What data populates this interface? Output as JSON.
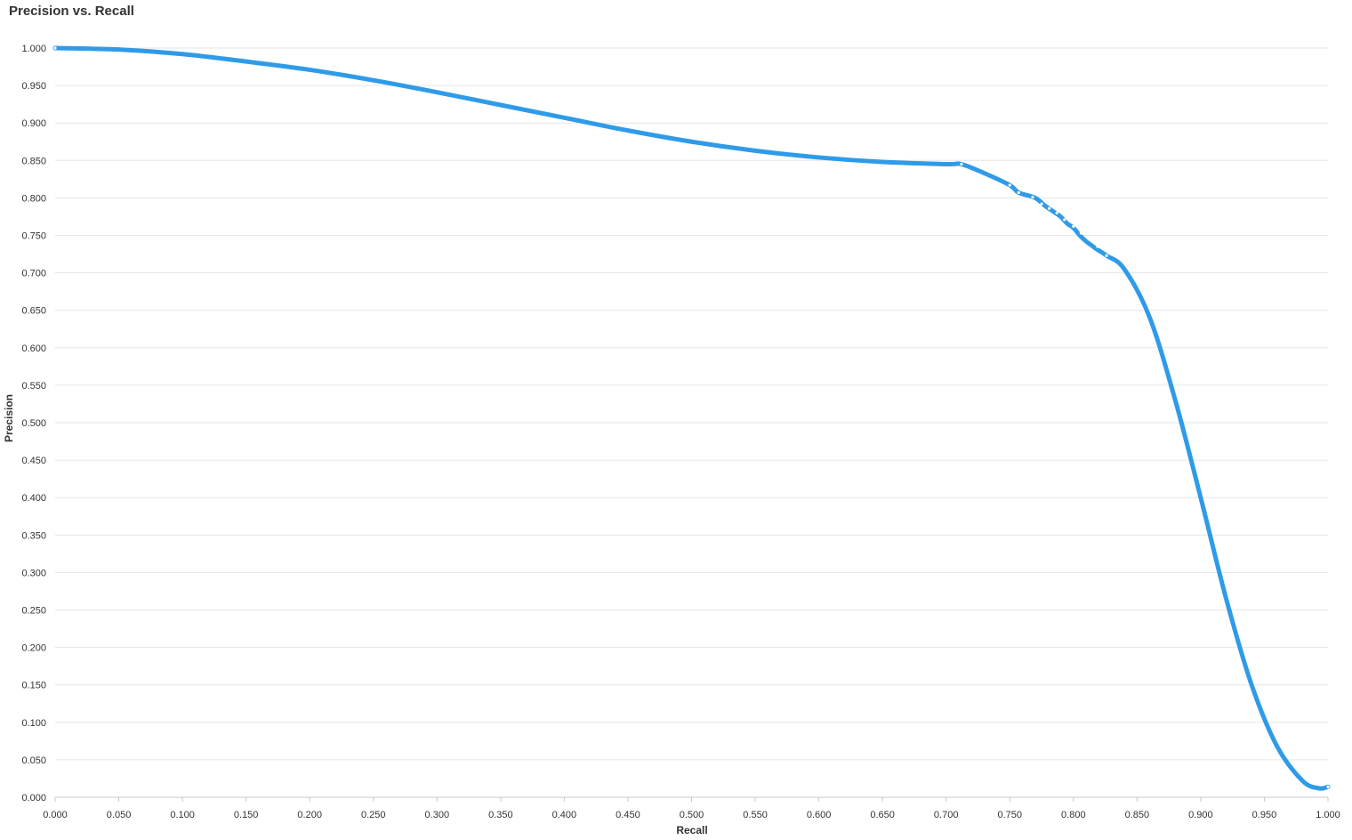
{
  "chart_data": {
    "type": "line",
    "title": "Precision vs. Recall",
    "xlabel": "Recall",
    "ylabel": "Precision",
    "xlim": [
      0,
      1
    ],
    "ylim": [
      0,
      1
    ],
    "x_ticks": [
      "0.000",
      "0.050",
      "0.100",
      "0.150",
      "0.200",
      "0.250",
      "0.300",
      "0.350",
      "0.400",
      "0.450",
      "0.500",
      "0.550",
      "0.600",
      "0.650",
      "0.700",
      "0.750",
      "0.800",
      "0.850",
      "0.900",
      "0.950",
      "1.000"
    ],
    "y_ticks": [
      "0.000",
      "0.050",
      "0.100",
      "0.150",
      "0.200",
      "0.250",
      "0.300",
      "0.350",
      "0.400",
      "0.450",
      "0.500",
      "0.550",
      "0.600",
      "0.650",
      "0.700",
      "0.750",
      "0.800",
      "0.850",
      "0.900",
      "0.950",
      "1.000"
    ],
    "grid": "horizontal",
    "legend": "none",
    "color": "#2f9be8",
    "series": [
      {
        "x": [
          0.0,
          0.05,
          0.1,
          0.15,
          0.2,
          0.25,
          0.3,
          0.35,
          0.4,
          0.45,
          0.5,
          0.55,
          0.6,
          0.65,
          0.7,
          0.712,
          0.73,
          0.75,
          0.757,
          0.77,
          0.778,
          0.785,
          0.79,
          0.795,
          0.8,
          0.805,
          0.81,
          0.818,
          0.826,
          0.84,
          0.86,
          0.88,
          0.9,
          0.92,
          0.94,
          0.96,
          0.98,
          0.993,
          1.0
        ],
        "y": [
          1.0,
          0.998,
          0.992,
          0.982,
          0.971,
          0.957,
          0.941,
          0.924,
          0.907,
          0.89,
          0.875,
          0.863,
          0.854,
          0.848,
          0.845,
          0.845,
          0.833,
          0.817,
          0.807,
          0.8,
          0.789,
          0.781,
          0.775,
          0.766,
          0.76,
          0.75,
          0.742,
          0.732,
          0.723,
          0.705,
          0.64,
          0.53,
          0.4,
          0.265,
          0.15,
          0.068,
          0.022,
          0.012,
          0.014
        ],
        "points": [
          [
            0.0,
            1.0
          ],
          [
            0.712,
            0.845
          ],
          [
            0.75,
            0.817
          ],
          [
            0.757,
            0.807
          ],
          [
            0.768,
            0.801
          ],
          [
            0.775,
            0.792
          ],
          [
            0.781,
            0.786
          ],
          [
            0.787,
            0.78
          ],
          [
            0.793,
            0.771
          ],
          [
            0.8,
            0.762
          ],
          [
            0.806,
            0.753
          ],
          [
            0.812,
            0.745
          ],
          [
            0.819,
            0.735
          ],
          [
            0.826,
            0.723
          ],
          [
            1.0,
            0.014
          ]
        ]
      }
    ]
  }
}
